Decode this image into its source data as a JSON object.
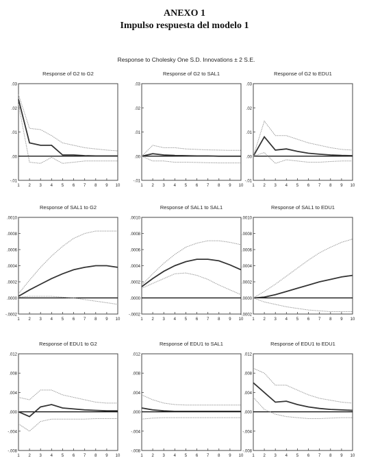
{
  "header": {
    "annex": "ANEXO 1",
    "subtitle": "Impulso respuesta del modelo 1"
  },
  "figure": {
    "title": "Response to Cholesky One S.D. Innovations ± 2 S.E.",
    "colors": {
      "response": "#333333",
      "band": "#9a9a9a",
      "zero": "#000000",
      "frame": "#444444"
    }
  },
  "chart_data": [
    {
      "type": "line",
      "title": "Response of G2 to G2",
      "x": [
        1,
        2,
        3,
        4,
        5,
        6,
        7,
        8,
        9,
        10
      ],
      "ylim": [
        -0.01,
        0.03
      ],
      "yticks": [
        ".03",
        ".02",
        ".01",
        ".00",
        "-.01"
      ],
      "ytick_values": [
        0.03,
        0.02,
        0.01,
        0.0,
        -0.01
      ],
      "series": [
        {
          "role": "response",
          "values": [
            0.0235,
            0.0055,
            0.0045,
            0.0045,
            0.0005,
            0.0005,
            0.0002,
            0.0001,
            0.0001,
            0.0001
          ]
        },
        {
          "role": "upper",
          "values": [
            0.0255,
            0.0115,
            0.011,
            0.0085,
            0.0055,
            0.0045,
            0.0035,
            0.003,
            0.0025,
            0.0022
          ]
        },
        {
          "role": "lower",
          "values": [
            0.0215,
            -0.0025,
            -0.003,
            -0.0005,
            -0.003,
            -0.0025,
            -0.002,
            -0.002,
            -0.002,
            -0.002
          ]
        }
      ]
    },
    {
      "type": "line",
      "title": "Response of G2 to SAL1",
      "x": [
        1,
        2,
        3,
        4,
        5,
        6,
        7,
        8,
        9,
        10
      ],
      "ylim": [
        -0.01,
        0.03
      ],
      "yticks": [
        ".03",
        ".02",
        ".01",
        ".00",
        "-.01"
      ],
      "ytick_values": [
        0.03,
        0.02,
        0.01,
        0.0,
        -0.01
      ],
      "series": [
        {
          "role": "response",
          "values": [
            0.0,
            0.001,
            0.0005,
            0.0003,
            0.0002,
            0.0001,
            0.0001,
            0.0,
            0.0,
            0.0
          ]
        },
        {
          "role": "upper",
          "values": [
            0.0,
            0.0045,
            0.0035,
            0.0035,
            0.003,
            0.0028,
            0.0026,
            0.0025,
            0.0024,
            0.0024
          ]
        },
        {
          "role": "lower",
          "values": [
            0.0,
            -0.002,
            -0.002,
            -0.0025,
            -0.0025,
            -0.0026,
            -0.0027,
            -0.0028,
            -0.0028,
            -0.0028
          ]
        }
      ]
    },
    {
      "type": "line",
      "title": "Response of G2 to EDU1",
      "x": [
        1,
        2,
        3,
        4,
        5,
        6,
        7,
        8,
        9,
        10
      ],
      "ylim": [
        -0.01,
        0.03
      ],
      "yticks": [
        ".03",
        ".02",
        ".01",
        ".00",
        "-.01"
      ],
      "ytick_values": [
        0.03,
        0.02,
        0.01,
        0.0,
        -0.01
      ],
      "series": [
        {
          "role": "response",
          "values": [
            0.0,
            0.008,
            0.0025,
            0.003,
            0.002,
            0.0012,
            0.0008,
            0.0005,
            0.0003,
            0.0002
          ]
        },
        {
          "role": "upper",
          "values": [
            0.0,
            0.0145,
            0.0085,
            0.0085,
            0.007,
            0.0055,
            0.0045,
            0.0035,
            0.0028,
            0.0025
          ]
        },
        {
          "role": "lower",
          "values": [
            0.0,
            0.0015,
            -0.003,
            -0.0015,
            -0.002,
            -0.0025,
            -0.0025,
            -0.0022,
            -0.002,
            -0.002
          ]
        }
      ]
    },
    {
      "type": "line",
      "title": "Response of SAL1 to G2",
      "x": [
        1,
        2,
        3,
        4,
        5,
        6,
        7,
        8,
        9,
        10
      ],
      "ylim": [
        -0.0002,
        0.001
      ],
      "yticks": [
        ".0010",
        ".0008",
        ".0006",
        ".0004",
        ".0002",
        ".0000",
        "-.0002"
      ],
      "ytick_values": [
        0.001,
        0.0008,
        0.0006,
        0.0004,
        0.0002,
        0.0,
        -0.0002
      ],
      "series": [
        {
          "role": "response",
          "values": [
            2e-05,
            0.0001,
            0.00017,
            0.00024,
            0.0003,
            0.00035,
            0.00038,
            0.0004,
            0.0004,
            0.00038
          ]
        },
        {
          "role": "upper",
          "values": [
            5e-05,
            0.00022,
            0.00038,
            0.00052,
            0.00064,
            0.00074,
            0.0008,
            0.00083,
            0.00083,
            0.00083
          ]
        },
        {
          "role": "lower",
          "values": [
            1e-05,
            2e-05,
            2e-05,
            2e-05,
            1e-05,
            0.0,
            -2e-05,
            -4e-05,
            -6e-05,
            -8e-05
          ]
        }
      ]
    },
    {
      "type": "line",
      "title": "Response of SAL1 to SAL1",
      "x": [
        1,
        2,
        3,
        4,
        5,
        6,
        7,
        8,
        9,
        10
      ],
      "ylim": [
        -0.0002,
        0.001
      ],
      "yticks": [
        ".0010",
        ".0008",
        ".0006",
        ".0004",
        ".0002",
        ".0000",
        "-.0002"
      ],
      "ytick_values": [
        0.001,
        0.0008,
        0.0006,
        0.0004,
        0.0002,
        0.0,
        -0.0002
      ],
      "series": [
        {
          "role": "response",
          "values": [
            0.00014,
            0.00024,
            0.00033,
            0.0004,
            0.00045,
            0.00048,
            0.00048,
            0.00046,
            0.00041,
            0.00035
          ]
        },
        {
          "role": "upper",
          "values": [
            0.00016,
            0.0003,
            0.00043,
            0.00054,
            0.00063,
            0.00068,
            0.00071,
            0.00071,
            0.00069,
            0.00066
          ]
        },
        {
          "role": "lower",
          "values": [
            0.00012,
            0.00018,
            0.00024,
            0.0003,
            0.00031,
            0.00028,
            0.00023,
            0.00016,
            0.0001,
            4e-05
          ]
        }
      ]
    },
    {
      "type": "line",
      "title": "Response of SAL1 to EDU1",
      "x": [
        1,
        2,
        3,
        4,
        5,
        6,
        7,
        8,
        9,
        10
      ],
      "ylim": [
        -0.0002,
        0.001
      ],
      "yticks": [
        ".0010",
        ".0008",
        ".0006",
        ".0004",
        ".0002",
        ".0000",
        "-.0002"
      ],
      "ytick_values": [
        0.001,
        0.0008,
        0.0006,
        0.0004,
        0.0002,
        0.0,
        -0.0002
      ],
      "series": [
        {
          "role": "response",
          "values": [
            0.0,
            1e-05,
            4e-05,
            8e-05,
            0.00012,
            0.00016,
            0.0002,
            0.00023,
            0.00026,
            0.00028
          ]
        },
        {
          "role": "upper",
          "values": [
            0.0,
            8e-05,
            0.00017,
            0.00027,
            0.00037,
            0.00047,
            0.00056,
            0.00063,
            0.00069,
            0.00073
          ]
        },
        {
          "role": "lower",
          "values": [
            0.0,
            -5e-05,
            -8e-05,
            -0.00011,
            -0.00013,
            -0.00015,
            -0.00016,
            -0.00017,
            -0.00017,
            -0.00017
          ]
        }
      ]
    },
    {
      "type": "line",
      "title": "Response of EDU1 to G2",
      "x": [
        1,
        2,
        3,
        4,
        5,
        6,
        7,
        8,
        9,
        10
      ],
      "ylim": [
        -0.008,
        0.012
      ],
      "yticks": [
        ".012",
        ".008",
        ".004",
        ".000",
        "-.004",
        "-.008"
      ],
      "ytick_values": [
        0.012,
        0.008,
        0.004,
        0.0,
        -0.004,
        -0.008
      ],
      "series": [
        {
          "role": "response",
          "values": [
            0.0,
            -0.001,
            0.001,
            0.0015,
            0.0008,
            0.0006,
            0.0004,
            0.0003,
            0.0002,
            0.0002
          ]
        },
        {
          "role": "upper",
          "values": [
            0.003,
            0.0025,
            0.0045,
            0.0045,
            0.0035,
            0.003,
            0.0025,
            0.002,
            0.0018,
            0.0018
          ]
        },
        {
          "role": "lower",
          "values": [
            -0.0025,
            -0.004,
            -0.002,
            -0.0015,
            -0.0015,
            -0.0015,
            -0.0015,
            -0.0014,
            -0.0014,
            -0.0014
          ]
        }
      ]
    },
    {
      "type": "line",
      "title": "Response of EDU1 to SAL1",
      "x": [
        1,
        2,
        3,
        4,
        5,
        6,
        7,
        8,
        9,
        10
      ],
      "ylim": [
        -0.008,
        0.012
      ],
      "yticks": [
        ".012",
        ".008",
        ".004",
        ".000",
        "-.004",
        "-.008"
      ],
      "ytick_values": [
        0.012,
        0.008,
        0.004,
        0.0,
        -0.004,
        -0.008
      ],
      "series": [
        {
          "role": "response",
          "values": [
            0.0008,
            0.0004,
            0.0002,
            0.0001,
            0.0001,
            0.0001,
            0.0001,
            0.0001,
            0.0001,
            0.0001
          ]
        },
        {
          "role": "upper",
          "values": [
            0.0035,
            0.0025,
            0.0018,
            0.0015,
            0.0014,
            0.0014,
            0.0014,
            0.0014,
            0.0014,
            0.0014
          ]
        },
        {
          "role": "lower",
          "values": [
            -0.0015,
            -0.0013,
            -0.0012,
            -0.0012,
            -0.0012,
            -0.0012,
            -0.0012,
            -0.0012,
            -0.0012,
            -0.0012
          ]
        }
      ]
    },
    {
      "type": "line",
      "title": "Response of EDU1 to EDU1",
      "x": [
        1,
        2,
        3,
        4,
        5,
        6,
        7,
        8,
        9,
        10
      ],
      "ylim": [
        -0.008,
        0.012
      ],
      "yticks": [
        ".012",
        ".008",
        ".004",
        ".000",
        "-.004",
        "-.008"
      ],
      "ytick_values": [
        0.012,
        0.008,
        0.004,
        0.0,
        -0.004,
        -0.008
      ],
      "series": [
        {
          "role": "response",
          "values": [
            0.006,
            0.004,
            0.002,
            0.0022,
            0.0015,
            0.001,
            0.0007,
            0.0005,
            0.0004,
            0.0003
          ]
        },
        {
          "role": "upper",
          "values": [
            0.009,
            0.008,
            0.0055,
            0.0055,
            0.0045,
            0.0035,
            0.0028,
            0.0024,
            0.002,
            0.0018
          ]
        },
        {
          "role": "lower",
          "values": [
            0.003,
            0.0005,
            -0.0005,
            -0.001,
            -0.0012,
            -0.0014,
            -0.0014,
            -0.0013,
            -0.0012,
            -0.0012
          ]
        }
      ]
    }
  ]
}
